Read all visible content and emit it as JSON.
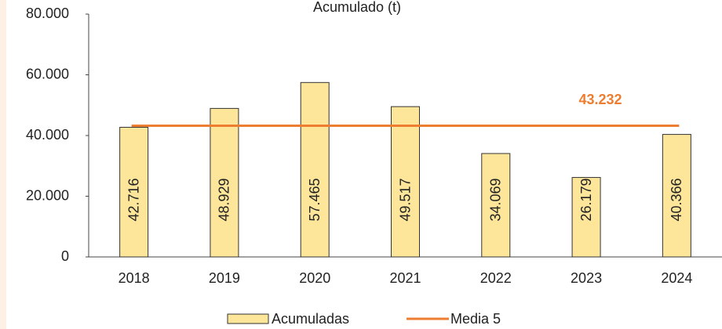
{
  "chart_data": {
    "type": "bar",
    "title": "Acumulado (t)",
    "categories": [
      "2018",
      "2019",
      "2020",
      "2021",
      "2022",
      "2023",
      "2024"
    ],
    "series": [
      {
        "name": "Acumuladas",
        "color": "#fde69a",
        "values": [
          42716,
          48929,
          57465,
          49517,
          34069,
          26179,
          40366
        ],
        "value_labels": [
          "42.716",
          "48.929",
          "57.465",
          "49.517",
          "34.069",
          "26.179",
          "40.366"
        ]
      }
    ],
    "average_line": {
      "name": "Media 5",
      "color": "#ed7d31",
      "value": 43232,
      "value_label": "43.232"
    },
    "ylim": [
      0,
      80000
    ],
    "yticks": [
      0,
      {
        "value": 20000,
        "label": "20.000"
      },
      {
        "value": 40000,
        "label": "40.000"
      },
      {
        "value": 60000,
        "label": "60.000"
      },
      {
        "value": 80000,
        "label": "80.000"
      }
    ]
  }
}
